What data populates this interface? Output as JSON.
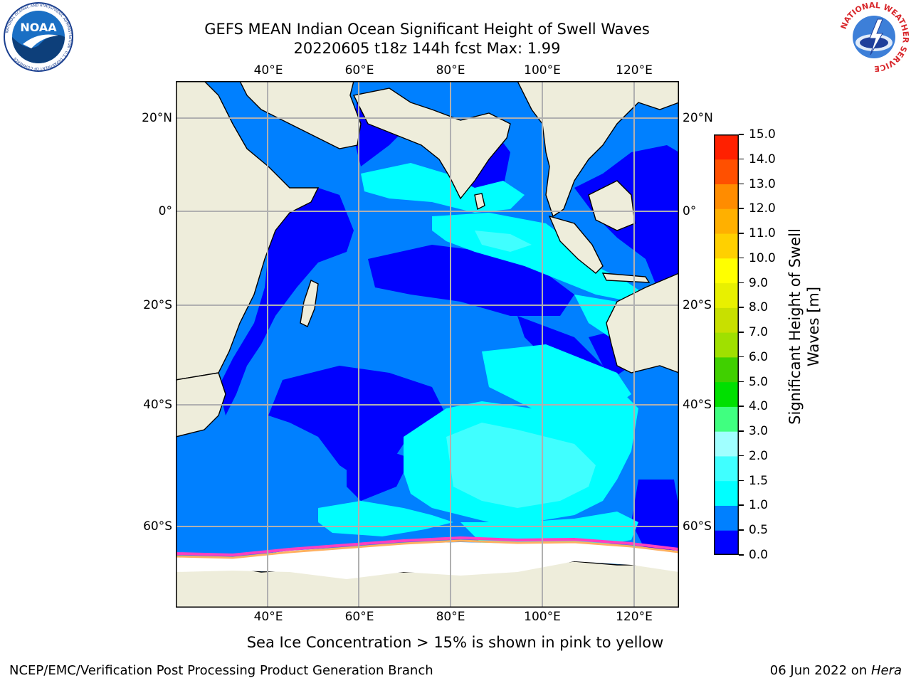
{
  "header": {
    "title_line1": "GEFS MEAN Indian Ocean Significant Height of Swell Waves",
    "title_line2": "20220605 t18z 144h fcst   Max: 1.99"
  },
  "logos": {
    "left": {
      "name": "noaa-logo",
      "text": "NOAA",
      "ring_text": "NATIONAL OCEANIC AND ATMOSPHERIC ADMINISTRATION · U.S. DEPARTMENT OF COMMERCE",
      "color": "#1a6fc4"
    },
    "right": {
      "name": "nws-logo",
      "ring_text": "NATIONAL WEATHER SERVICE",
      "color": "#d8262a"
    }
  },
  "map": {
    "lon_ticks": [
      "40°E",
      "60°E",
      "80°E",
      "100°E",
      "120°E"
    ],
    "lat_ticks": [
      "20°N",
      "0°",
      "20°S",
      "40°S",
      "60°S"
    ],
    "land_color": "#eeeddb",
    "ice_note": "Sea Ice Concentration > 15% is shown in pink to yellow"
  },
  "colorbar": {
    "title_line1": "Significant Height of Swell",
    "title_line2": "Waves [m]",
    "levels": [
      "0.0",
      "0.5",
      "1.0",
      "1.5",
      "2.0",
      "3.0",
      "4.0",
      "5.0",
      "6.0",
      "7.0",
      "8.0",
      "9.0",
      "10.0",
      "11.0",
      "12.0",
      "13.0",
      "14.0",
      "15.0"
    ],
    "colors": [
      "#0000ff",
      "#0080ff",
      "#00ffff",
      "#40ffff",
      "#a0ffff",
      "#40ff80",
      "#00e000",
      "#40d000",
      "#a0e000",
      "#c8e000",
      "#e8f000",
      "#ffff00",
      "#ffd000",
      "#ffb000",
      "#ff8c00",
      "#ff5000",
      "#ff2000"
    ]
  },
  "footer": {
    "left": "NCEP/EMC/Verification Post Processing Product Generation Branch",
    "right_date": "06 Jun 2022 on ",
    "right_host": "Hera"
  }
}
